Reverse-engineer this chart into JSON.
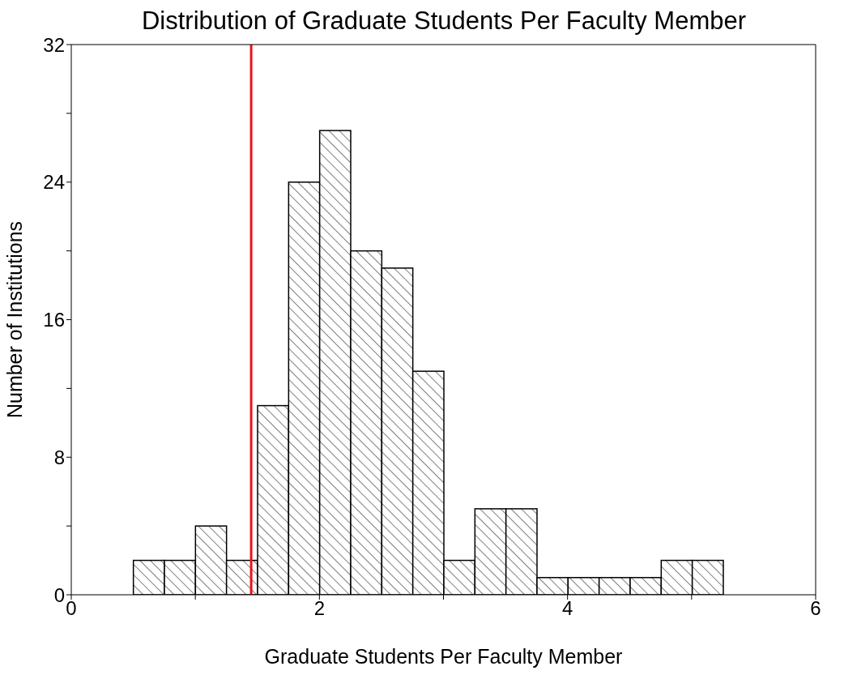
{
  "chart_data": {
    "type": "histogram",
    "title": "Distribution of Graduate Students Per Faculty Member",
    "xlabel": "Graduate Students Per Faculty Member",
    "ylabel": "Number of Institutions",
    "bins": [
      0.5,
      0.75,
      1,
      1.25,
      1.5,
      1.75,
      2,
      2.25,
      2.5,
      2.75,
      3,
      3.25,
      3.5,
      3.75,
      4,
      4.25,
      4.5,
      4.75,
      5,
      5.25
    ],
    "values": [
      2,
      2,
      4,
      2,
      11,
      24,
      27,
      20,
      19,
      13,
      2,
      5,
      5,
      1,
      1,
      1,
      1,
      2,
      2
    ],
    "color": "#000000",
    "xlim": [
      0,
      6
    ],
    "xticks": [
      0,
      {
        "value": 1,
        "label": null
      },
      2,
      {
        "value": 3,
        "label": null
      },
      4,
      {
        "value": 5,
        "label": null
      },
      6
    ],
    "ylim": [
      0,
      32
    ],
    "yticks": [
      0,
      {
        "value": 4,
        "label": null
      },
      8,
      {
        "value": 12,
        "label": null
      },
      16,
      {
        "value": 20,
        "label": null
      },
      24,
      {
        "value": 28,
        "label": null
      },
      32
    ],
    "ref_lines": [
      {
        "axis": "x",
        "value": 1.45,
        "color": "#e8141a"
      }
    ]
  }
}
